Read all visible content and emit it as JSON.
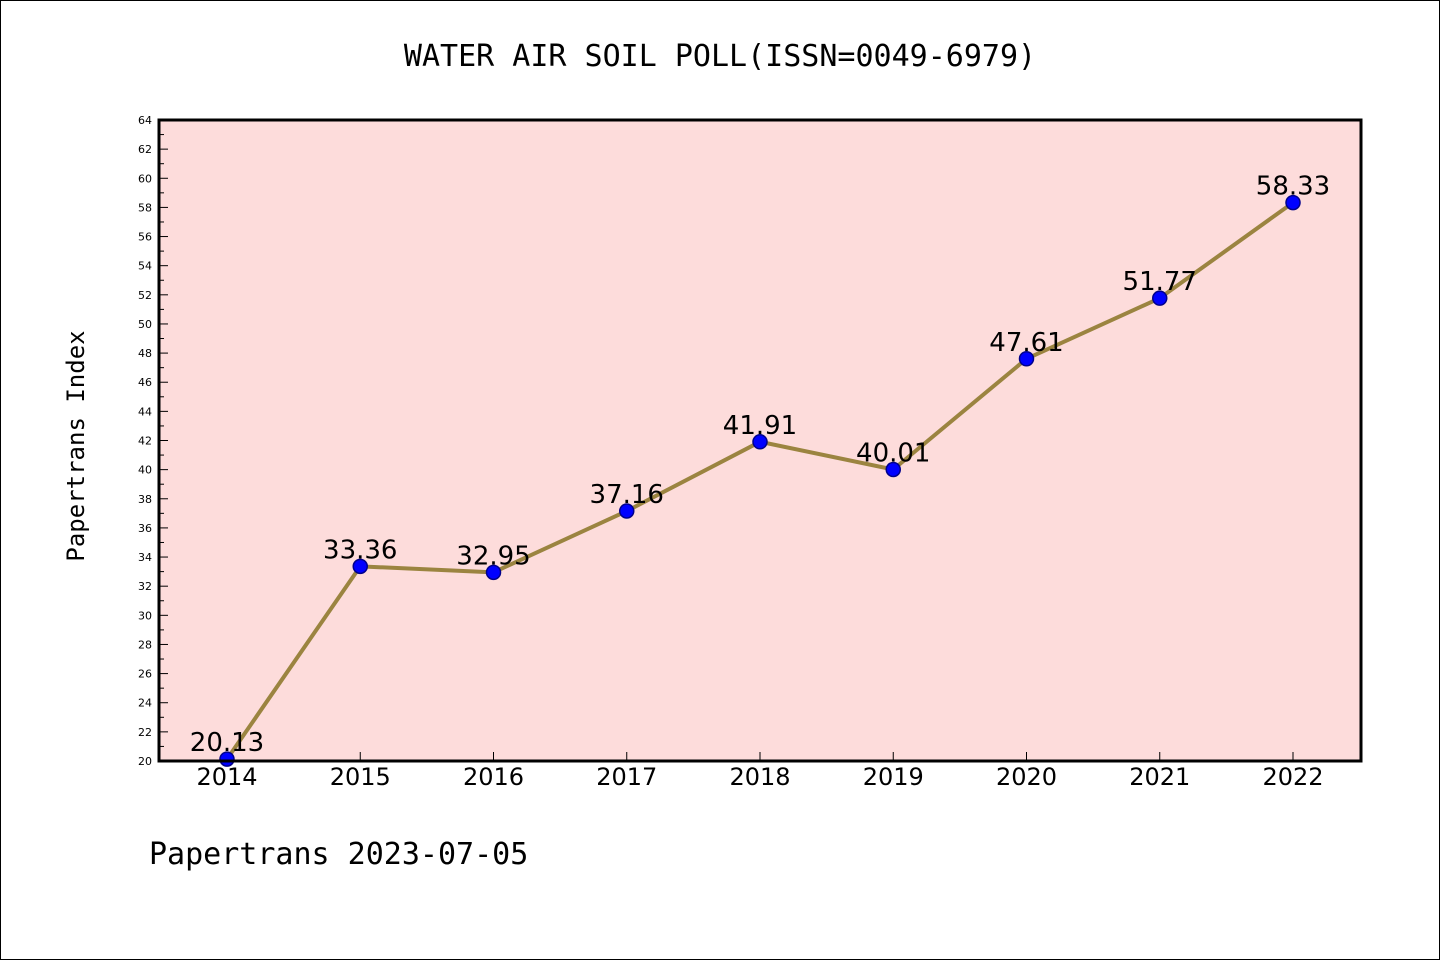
{
  "chart_data": {
    "type": "line",
    "title": "WATER AIR SOIL POLL(ISSN=0049-6979)",
    "xlabel": "",
    "ylabel": "Papertrans Index",
    "categories": [
      "2014",
      "2015",
      "2016",
      "2017",
      "2018",
      "2019",
      "2020",
      "2021",
      "2022"
    ],
    "values": [
      20.13,
      33.36,
      32.95,
      37.16,
      41.91,
      40.01,
      47.61,
      51.77,
      58.33
    ],
    "data_labels": [
      "20.13",
      "33.36",
      "32.95",
      "37.16",
      "41.91",
      "40.01",
      "47.61",
      "51.77",
      "58.33"
    ],
    "ylim": [
      20,
      64
    ],
    "yticks": [
      20,
      22,
      24,
      26,
      28,
      30,
      32,
      34,
      36,
      38,
      40,
      42,
      44,
      46,
      48,
      50,
      52,
      54,
      56,
      58,
      60,
      62,
      64
    ],
    "grid": false,
    "legend": "none",
    "footer": "Papertrans 2023-07-05",
    "colors": {
      "plot_background": "#fddcdb",
      "line": "#9b8440",
      "marker_fill": "#0000ff",
      "marker_edge": "#00008b",
      "axes": "#000000"
    }
  }
}
